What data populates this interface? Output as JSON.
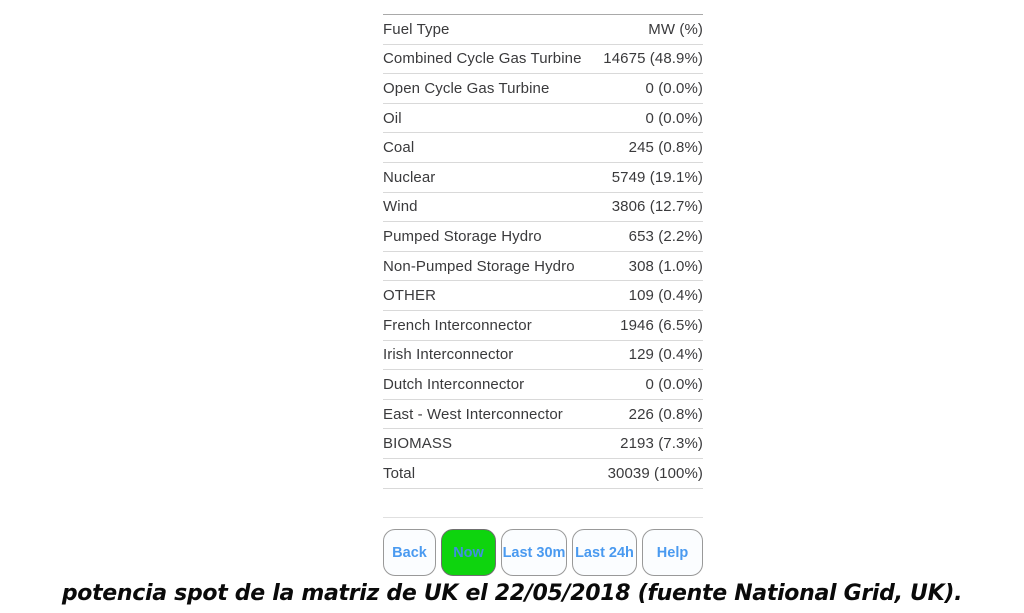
{
  "table": {
    "header": {
      "label": "Fuel Type",
      "value": "MW (%)"
    },
    "rows": [
      {
        "label": "Combined Cycle Gas Turbine",
        "value": "14675 (48.9%)"
      },
      {
        "label": "Open Cycle Gas Turbine",
        "value": "0 (0.0%)"
      },
      {
        "label": "Oil",
        "value": "0 (0.0%)"
      },
      {
        "label": "Coal",
        "value": "245 (0.8%)"
      },
      {
        "label": "Nuclear",
        "value": "5749 (19.1%)"
      },
      {
        "label": "Wind",
        "value": "3806 (12.7%)"
      },
      {
        "label": "Pumped Storage Hydro",
        "value": "653 (2.2%)"
      },
      {
        "label": "Non-Pumped Storage Hydro",
        "value": "308 (1.0%)"
      },
      {
        "label": "OTHER",
        "value": "109 (0.4%)"
      },
      {
        "label": "French Interconnector",
        "value": "1946 (6.5%)"
      },
      {
        "label": "Irish Interconnector",
        "value": "129 (0.4%)"
      },
      {
        "label": "Dutch Interconnector",
        "value": "0 (0.0%)"
      },
      {
        "label": "East - West Interconnector",
        "value": "226 (0.8%)"
      },
      {
        "label": "BIOMASS",
        "value": "2193 (7.3%)"
      },
      {
        "label": "Total",
        "value": "30039 (100%)"
      }
    ]
  },
  "toolbar": {
    "buttons": [
      {
        "label": "Back",
        "active": false
      },
      {
        "label": "Now",
        "active": true
      },
      {
        "label": "Last 30m",
        "active": false
      },
      {
        "label": "Last 24h",
        "active": false
      },
      {
        "label": "Help",
        "active": false
      }
    ]
  },
  "caption": "potencia spot de la matriz de UK el 22/05/2018 (fuente National Grid, UK).",
  "colors": {
    "button_text": "#4a9af0",
    "active_button_bg": "#0ed40e",
    "table_text": "#3a3a3c"
  }
}
